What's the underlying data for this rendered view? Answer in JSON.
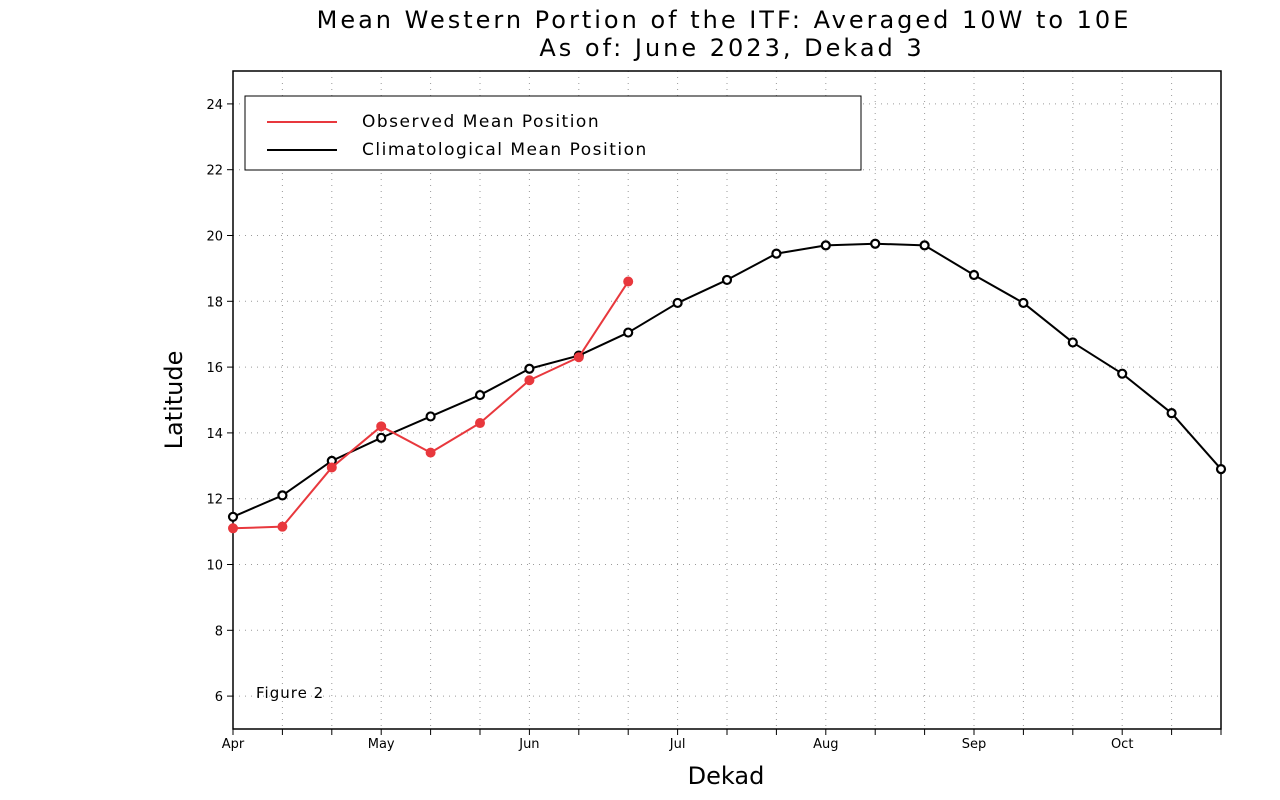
{
  "chart_data": {
    "type": "line",
    "title": "Mean Western Portion of the ITF: Averaged 10W to 10E",
    "subtitle": "As of: June 2023, Dekad 3",
    "xlabel": "Dekad",
    "ylabel": "Latitude",
    "x_tick_labels": [
      "Apr",
      "May",
      "Jun",
      "Jul",
      "Aug",
      "Sep",
      "Oct"
    ],
    "y_ticks": [
      6,
      8,
      10,
      12,
      14,
      16,
      18,
      20,
      22,
      24
    ],
    "ylim": [
      5,
      25
    ],
    "dekads_per_month": 3,
    "num_dekads": 21,
    "grid": true,
    "legend_position": "top-left",
    "annotation": "Figure 2",
    "series": [
      {
        "name": "Observed Mean Position",
        "color": "#e8383d",
        "values": [
          11.1,
          11.15,
          12.95,
          14.2,
          13.4,
          14.3,
          15.6,
          16.3,
          18.6
        ]
      },
      {
        "name": "Climatological Mean Position",
        "color": "#000000",
        "values": [
          11.45,
          12.1,
          13.15,
          13.85,
          14.5,
          15.15,
          15.95,
          16.35,
          17.05,
          17.95,
          18.65,
          19.45,
          19.7,
          19.75,
          19.7,
          18.8,
          17.95,
          16.75,
          15.8,
          14.6,
          12.9
        ]
      }
    ]
  }
}
